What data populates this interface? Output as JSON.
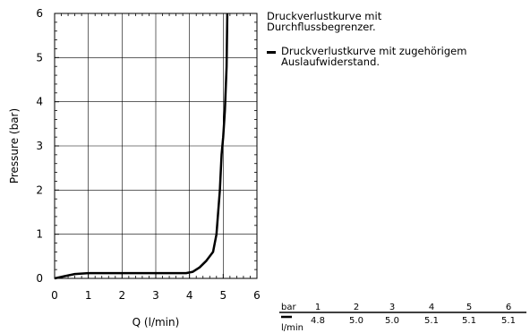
{
  "chart_data": {
    "type": "line",
    "xlabel": "Q (l/min)",
    "ylabel": "Pressure (bar)",
    "xlim": [
      0,
      6
    ],
    "ylim": [
      0,
      6
    ],
    "x_ticks": [
      "0",
      "1",
      "2",
      "3",
      "4",
      "5",
      "6"
    ],
    "y_ticks": [
      "0",
      "1",
      "2",
      "3",
      "4",
      "5",
      "6"
    ],
    "grid": true,
    "series": [
      {
        "name": "Druckverlustkurve mit zugehörigem Auslaufwiderstand.",
        "color": "#000000",
        "x": [
          0,
          0.3,
          0.6,
          1.0,
          2.0,
          3.0,
          3.9,
          4.1,
          4.3,
          4.5,
          4.7,
          4.8,
          4.9,
          4.95,
          5.0,
          5.05,
          5.1,
          5.12
        ],
        "y": [
          0,
          0.05,
          0.1,
          0.12,
          0.12,
          0.12,
          0.12,
          0.15,
          0.25,
          0.4,
          0.6,
          1.0,
          2.0,
          2.8,
          3.2,
          3.8,
          4.8,
          6.0
        ]
      }
    ]
  },
  "legend": {
    "note": "Druckverlustkurve mit Durchflussbegrenzer.",
    "curve_label": "Druckverlustkurve mit zugehörigem Auslaufwiderstand."
  },
  "table": {
    "row1_label": "bar",
    "row2_label": "l/min",
    "columns": [
      {
        "bar": "1",
        "flow": "4.8"
      },
      {
        "bar": "2",
        "flow": "5.0"
      },
      {
        "bar": "3",
        "flow": "5.0"
      },
      {
        "bar": "4",
        "flow": "5.1"
      },
      {
        "bar": "5",
        "flow": "5.1"
      },
      {
        "bar": "6",
        "flow": "5.1"
      }
    ]
  }
}
